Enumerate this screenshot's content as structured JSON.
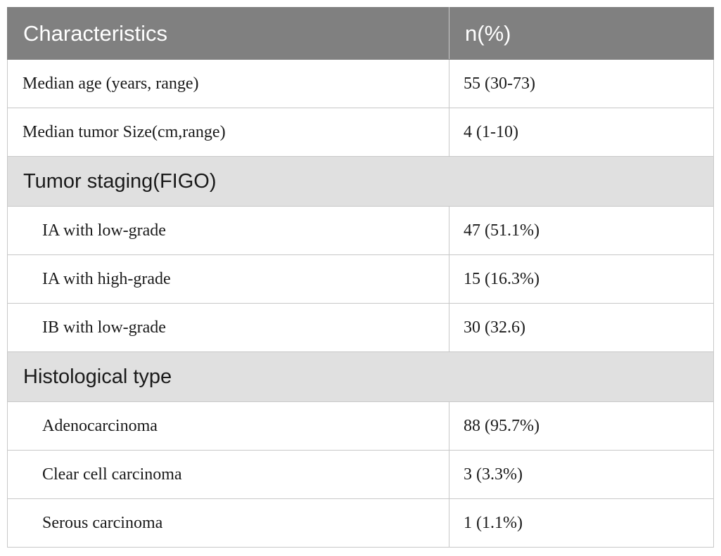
{
  "table": {
    "headers": [
      "Characteristics",
      "n(%)"
    ],
    "rows": [
      {
        "label": "Median age (years, range)",
        "value": "55 (30-73)"
      },
      {
        "label": "Median tumor Size(cm,range)",
        "value": "4 (1-10)"
      }
    ],
    "sections": [
      {
        "title": "Tumor staging(FIGO)",
        "rows": [
          {
            "label": "IA with low-grade",
            "value": "47 (51.1%)"
          },
          {
            "label": "IA with high-grade",
            "value": "15 (16.3%)"
          },
          {
            "label": "IB with low-grade",
            "value": "30 (32.6)"
          }
        ]
      },
      {
        "title": "Histological type",
        "rows": [
          {
            "label": "Adenocarcinoma",
            "value": "88 (95.7%)"
          },
          {
            "label": "Clear cell carcinoma",
            "value": "3 (3.3%)"
          },
          {
            "label": "Serous carcinoma",
            "value": "1 (1.1%)"
          }
        ]
      }
    ]
  },
  "colors": {
    "header_bg": "#808080",
    "section_bg": "#e0e0e0",
    "border": "#c8c8c8"
  }
}
